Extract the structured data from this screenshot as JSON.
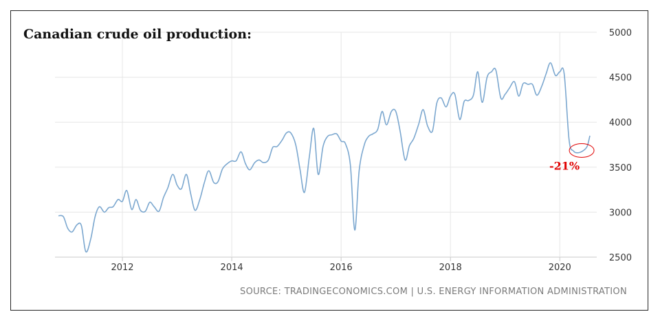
{
  "title": "Canadian crude oil production:",
  "source": "SOURCE: TRADINGECONOMICS.COM | U.S. ENERGY INFORMATION ADMINISTRATION",
  "annotation": "-21%",
  "colors": {
    "line": "#7ba7cf",
    "grid": "#e6e6e6",
    "annotation": "#e00000"
  },
  "chart_data": {
    "type": "line",
    "title": "Canadian crude oil production:",
    "xlabel": "",
    "ylabel": "",
    "xlim": [
      2010.83,
      2020.55
    ],
    "ylim": [
      2500,
      5000
    ],
    "x_ticks": [
      2012,
      2014,
      2016,
      2018,
      2020
    ],
    "y_ticks": [
      2500,
      3000,
      3500,
      4000,
      4500,
      5000
    ],
    "grid": true,
    "y_axis_side": "right",
    "series": [
      {
        "name": "",
        "x": [
          2010.83,
          2010.92,
          2011.0,
          2011.08,
          2011.17,
          2011.25,
          2011.33,
          2011.42,
          2011.5,
          2011.58,
          2011.67,
          2011.75,
          2011.83,
          2011.92,
          2012.0,
          2012.08,
          2012.17,
          2012.25,
          2012.33,
          2012.42,
          2012.5,
          2012.58,
          2012.67,
          2012.75,
          2012.83,
          2012.92,
          2013.0,
          2013.08,
          2013.17,
          2013.25,
          2013.33,
          2013.42,
          2013.5,
          2013.58,
          2013.67,
          2013.75,
          2013.83,
          2013.92,
          2014.0,
          2014.08,
          2014.17,
          2014.25,
          2014.33,
          2014.42,
          2014.5,
          2014.58,
          2014.67,
          2014.75,
          2014.83,
          2014.92,
          2015.0,
          2015.08,
          2015.17,
          2015.25,
          2015.33,
          2015.42,
          2015.5,
          2015.58,
          2015.67,
          2015.75,
          2015.83,
          2015.92,
          2016.0,
          2016.08,
          2016.17,
          2016.25,
          2016.33,
          2016.42,
          2016.5,
          2016.58,
          2016.67,
          2016.75,
          2016.83,
          2016.92,
          2017.0,
          2017.08,
          2017.17,
          2017.25,
          2017.33,
          2017.42,
          2017.5,
          2017.58,
          2017.67,
          2017.75,
          2017.83,
          2017.92,
          2018.0,
          2018.08,
          2018.17,
          2018.25,
          2018.33,
          2018.42,
          2018.5,
          2018.58,
          2018.67,
          2018.75,
          2018.83,
          2018.92,
          2019.0,
          2019.08,
          2019.17,
          2019.25,
          2019.33,
          2019.42,
          2019.5,
          2019.58,
          2019.67,
          2019.75,
          2019.83,
          2019.92,
          2020.0,
          2020.08,
          2020.17,
          2020.25,
          2020.33,
          2020.42,
          2020.5,
          2020.55
        ],
        "y": [
          2960,
          2950,
          2820,
          2780,
          2860,
          2850,
          2560,
          2700,
          2950,
          3060,
          3000,
          3050,
          3060,
          3140,
          3120,
          3240,
          3030,
          3140,
          3020,
          3010,
          3110,
          3060,
          3010,
          3160,
          3270,
          3420,
          3300,
          3260,
          3420,
          3200,
          3020,
          3150,
          3330,
          3460,
          3330,
          3340,
          3480,
          3540,
          3570,
          3570,
          3670,
          3540,
          3470,
          3550,
          3580,
          3550,
          3580,
          3720,
          3730,
          3800,
          3880,
          3880,
          3750,
          3470,
          3220,
          3620,
          3930,
          3420,
          3730,
          3840,
          3860,
          3870,
          3790,
          3760,
          3520,
          2800,
          3460,
          3740,
          3840,
          3870,
          3920,
          4120,
          3970,
          4120,
          4120,
          3900,
          3580,
          3740,
          3820,
          3980,
          4140,
          3960,
          3900,
          4210,
          4270,
          4170,
          4290,
          4310,
          4030,
          4230,
          4240,
          4300,
          4560,
          4220,
          4500,
          4560,
          4580,
          4270,
          4310,
          4380,
          4450,
          4290,
          4430,
          4420,
          4420,
          4300,
          4400,
          4540,
          4660,
          4520,
          4560,
          4540,
          3800,
          3680,
          3660,
          3680,
          3730,
          3850
        ]
      }
    ],
    "annotations": [
      {
        "text": "-21%",
        "x": 2020.4,
        "y": 3670,
        "color": "#e00000"
      }
    ]
  }
}
